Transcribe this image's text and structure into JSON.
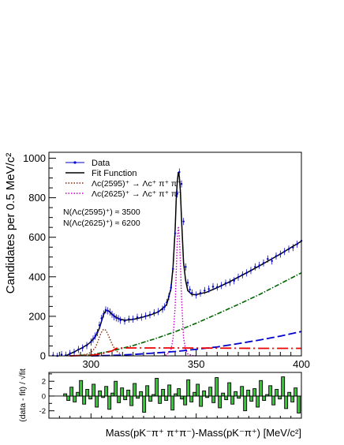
{
  "chart_data": [
    {
      "type": "line",
      "panel": "main",
      "ylabel": "Candidates per 0.5 MeV/c²",
      "xlim": [
        280,
        400
      ],
      "ylim": [
        0,
        1030
      ],
      "x_ticks": [
        300,
        350,
        400
      ],
      "y_ticks": [
        0,
        200,
        400,
        600,
        800,
        1000
      ],
      "legend": {
        "position": "top-left",
        "entries": [
          {
            "label": "Data",
            "style": "points",
            "color": "#0000cc"
          },
          {
            "label": "Fit Function",
            "style": "solid",
            "color": "#000000"
          },
          {
            "label": "Λc(2595)⁺ → Λc⁺ π⁺ π⁻",
            "style": "dotted",
            "color": "#8b2500"
          },
          {
            "label": "Λc(2625)⁺ → Λc⁺ π⁺ π⁻",
            "style": "dotted",
            "color": "#cc00cc"
          }
        ]
      },
      "annotations": [
        "N(Λc(2595)⁺) ≈ 3500",
        "N(Λc(2625)⁺) ≈ 6200"
      ],
      "series": [
        {
          "name": "Fit Function",
          "color": "#000000",
          "style": "solid",
          "x": [
            288,
            292,
            296,
            299,
            302,
            304,
            305,
            306,
            307,
            308,
            309,
            310,
            312,
            314,
            316,
            318,
            320,
            324,
            328,
            332,
            334,
            336,
            338,
            339,
            340,
            340.5,
            341,
            341.5,
            342,
            342.5,
            343,
            344,
            345,
            346,
            348,
            350,
            355,
            360,
            365,
            370,
            375,
            380,
            385,
            390,
            395,
            400
          ],
          "y": [
            0,
            20,
            42,
            62,
            95,
            140,
            175,
            210,
            228,
            230,
            222,
            210,
            195,
            185,
            180,
            182,
            184,
            194,
            206,
            222,
            240,
            260,
            340,
            450,
            640,
            790,
            880,
            930,
            905,
            830,
            700,
            470,
            380,
            330,
            310,
            310,
            322,
            345,
            370,
            398,
            426,
            455,
            485,
            515,
            548,
            580
          ]
        },
        {
          "name": "Λc(2595)⁺ → Λc⁺ π⁺ π⁻",
          "color": "#8b2500",
          "style": "dotted",
          "x": [
            290,
            295,
            298,
            300,
            302,
            303,
            304,
            305,
            306,
            307,
            308,
            309,
            310,
            311,
            312,
            314
          ],
          "y": [
            0,
            3,
            8,
            18,
            40,
            65,
            95,
            120,
            135,
            130,
            110,
            85,
            60,
            40,
            25,
            10
          ]
        },
        {
          "name": "Λc(2625)⁺ → Λc⁺ π⁺ π⁻",
          "color": "#cc00cc",
          "style": "dotted",
          "x": [
            334,
            336,
            338,
            339,
            340,
            340.5,
            341,
            341.5,
            342,
            342.5,
            343,
            344,
            345,
            346,
            348,
            350
          ],
          "y": [
            0,
            5,
            30,
            90,
            250,
            420,
            580,
            655,
            600,
            470,
            300,
            90,
            30,
            10,
            2,
            0
          ]
        },
        {
          "color": "#006400",
          "style": "dashdot",
          "x": [
            290,
            300,
            310,
            320,
            330,
            340,
            350,
            360,
            370,
            380,
            390,
            400
          ],
          "y": [
            0,
            5,
            25,
            52,
            85,
            122,
            165,
            212,
            260,
            310,
            365,
            420
          ]
        },
        {
          "color": "#0000cc",
          "style": "dashed",
          "x": [
            300,
            310,
            320,
            330,
            340,
            350,
            360,
            370,
            380,
            390,
            400
          ],
          "y": [
            0,
            2,
            7,
            14,
            22,
            33,
            45,
            62,
            80,
            100,
            123
          ]
        },
        {
          "color": "#ee0000",
          "style": "longdashdot",
          "x": [
            290,
            300,
            305,
            310,
            312,
            315,
            320,
            340,
            360,
            380,
            400
          ],
          "y": [
            0,
            3,
            10,
            25,
            38,
            40,
            40,
            40,
            39,
            38,
            38
          ]
        }
      ],
      "data_points": {
        "name": "Data",
        "color": "#0000cc",
        "x": [
          282,
          284,
          286,
          288,
          290,
          292,
          294,
          296,
          298,
          300,
          301,
          302,
          303,
          304,
          305,
          306,
          307,
          308,
          309,
          310,
          311,
          312,
          313,
          314,
          316,
          318,
          320,
          322,
          324,
          326,
          328,
          330,
          332,
          334,
          335,
          336,
          337,
          338,
          339,
          340,
          341,
          342,
          343,
          344,
          345,
          346,
          347,
          348,
          350,
          352,
          354,
          356,
          358,
          360,
          362,
          364,
          366,
          368,
          370,
          372,
          374,
          376,
          378,
          380,
          382,
          384,
          386,
          388,
          390,
          392,
          394,
          396,
          398,
          400
        ],
        "y": [
          2,
          -3,
          6,
          3,
          12,
          18,
          32,
          40,
          52,
          70,
          85,
          100,
          118,
          155,
          190,
          212,
          232,
          228,
          222,
          210,
          198,
          192,
          188,
          180,
          176,
          186,
          186,
          195,
          196,
          202,
          208,
          218,
          224,
          236,
          248,
          270,
          300,
          345,
          440,
          620,
          820,
          930,
          870,
          680,
          450,
          370,
          335,
          318,
          308,
          318,
          330,
          338,
          350,
          348,
          356,
          368,
          372,
          380,
          398,
          410,
          420,
          432,
          450,
          458,
          470,
          490,
          480,
          505,
          515,
          528,
          540,
          548,
          565,
          582
        ],
        "y_err": 18
      }
    },
    {
      "type": "bar",
      "panel": "residuals",
      "ylabel": "(data - fit) / √fit",
      "xlabel": "Mass(pK⁻π⁺ π⁺π⁻)-Mass(pK⁻π⁺) [MeV/c²]",
      "xlim": [
        280,
        400
      ],
      "ylim": [
        -3,
        3.2
      ],
      "y_ticks": [
        -2,
        0,
        2
      ],
      "bin_width": 1.5,
      "x_start": 287,
      "values": [
        0.3,
        -0.6,
        1.2,
        -0.8,
        0.5,
        2.1,
        -1.1,
        0.9,
        -0.4,
        1.6,
        -1.5,
        0.7,
        -0.2,
        1.3,
        -1.8,
        0.4,
        2.0,
        -0.9,
        1.1,
        -0.5,
        0.8,
        -1.3,
        1.7,
        -0.3,
        0.6,
        -2.2,
        1.4,
        -0.7,
        0.2,
        2.4,
        -1.0,
        0.9,
        -0.6,
        1.5,
        -1.9,
        0.3,
        1.0,
        -0.4,
        -1.2,
        2.2,
        -0.8,
        0.5,
        1.6,
        -1.4,
        0.7,
        -0.2,
        1.2,
        -0.9,
        2.5,
        -1.6,
        0.4,
        -0.5,
        1.8,
        -1.1,
        0.6,
        -0.3,
        1.3,
        -2.0,
        0.8,
        -0.7,
        1.0,
        -1.5,
        2.1,
        -0.6,
        0.2,
        1.4,
        -1.2,
        0.9,
        -0.4,
        2.6,
        -1.7,
        0.5,
        -0.8,
        1.1,
        -2.3,
        0.7,
        1.5,
        -0.5,
        -1.0,
        1.9
      ]
    }
  ]
}
